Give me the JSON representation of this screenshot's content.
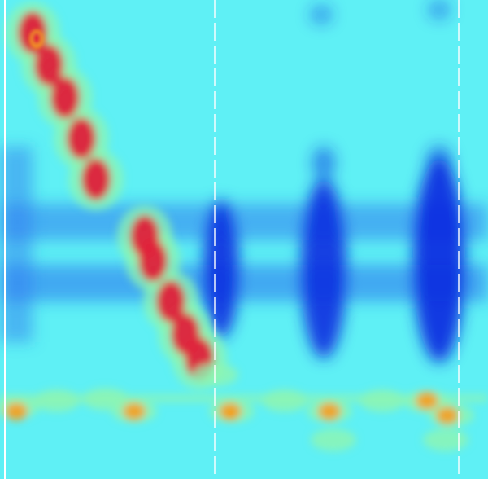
{
  "chart_data": {
    "type": "heatmap",
    "title": "",
    "xlabel": "",
    "ylabel": "",
    "colormap": [
      "#0a2ee0",
      "#2f7cf0",
      "#5ff0f5",
      "#8ef5b0",
      "#f4f53a",
      "#f4a020",
      "#e0203a"
    ],
    "background_color": "#5ff0f5",
    "grid": false,
    "legend": "none",
    "vertical_markers": [
      {
        "style": "solid-white"
      },
      {
        "style": "dashed-white"
      },
      {
        "style": "dashed-white"
      }
    ],
    "features": [
      {
        "name": "descending-ridge",
        "kind": "ridge",
        "level": 0.85
      },
      {
        "name": "low-band-ridge",
        "kind": "band",
        "level": 0.75
      },
      {
        "name": "cool-band-upper",
        "kind": "band",
        "level": -0.55
      },
      {
        "name": "cool-band-lower",
        "kind": "band",
        "level": -0.75
      },
      {
        "name": "cool-column-1",
        "kind": "column",
        "level": -0.85
      },
      {
        "name": "cool-column-2",
        "kind": "column",
        "level": -0.9
      },
      {
        "name": "cool-column-3",
        "kind": "column",
        "level": -0.95
      },
      {
        "name": "hot-peak",
        "kind": "peak",
        "level": 1.0
      }
    ]
  }
}
